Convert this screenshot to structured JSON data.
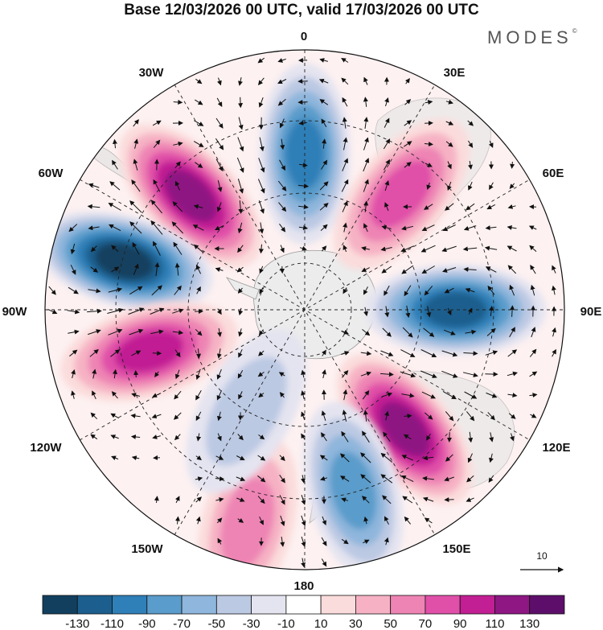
{
  "title": "Base 12/03/2026 00 UTC, valid 17/03/2026 00 UTC",
  "brand": "MODES",
  "brand_mark": "©",
  "longitude_labels": {
    "top": "0",
    "top_right": "30E",
    "right_upper": "60E",
    "right": "90E",
    "right_lower": "120E",
    "bottom_right": "150E",
    "bottom": "180",
    "bottom_left": "150W",
    "left_lower": "120W",
    "left": "90W",
    "left_upper": "60W",
    "top_left": "30W"
  },
  "vector_reference": "10",
  "colorbar": {
    "labels": [
      "-130",
      "-110",
      "-90",
      "-70",
      "-50",
      "-30",
      "-10",
      "10",
      "30",
      "50",
      "70",
      "90",
      "110",
      "130"
    ],
    "colors": [
      "#123f5e",
      "#1c5f8e",
      "#2f7fb8",
      "#5a9ccb",
      "#8fb6dc",
      "#bcc9e3",
      "#e4e4f0",
      "#ffffff",
      "#fbdcdc",
      "#f6b2c4",
      "#ee84b4",
      "#e050a8",
      "#c21f94",
      "#8e1783",
      "#5d0e6a"
    ]
  },
  "anomalies": [
    {
      "name": "neg-0",
      "lon": 0,
      "dist": 0.6,
      "value": -90
    },
    {
      "name": "pos-45W",
      "lon": -45,
      "dist": 0.62,
      "value": 110
    },
    {
      "name": "pos-40E",
      "lon": 40,
      "dist": 0.58,
      "value": 70
    },
    {
      "name": "neg-75W",
      "lon": -75,
      "dist": 0.72,
      "value": -130
    },
    {
      "name": "neg-90E",
      "lon": 90,
      "dist": 0.58,
      "value": -110
    },
    {
      "name": "pos-105W",
      "lon": -105,
      "dist": 0.62,
      "value": 90
    },
    {
      "name": "pos-140E",
      "lon": 140,
      "dist": 0.6,
      "value": 110
    },
    {
      "name": "neg-165E",
      "lon": 165,
      "dist": 0.72,
      "value": -70
    },
    {
      "name": "pos-165W",
      "lon": -165,
      "dist": 0.85,
      "value": 50
    },
    {
      "name": "neg-150W",
      "lon": -150,
      "dist": 0.45,
      "value": -30
    }
  ]
}
